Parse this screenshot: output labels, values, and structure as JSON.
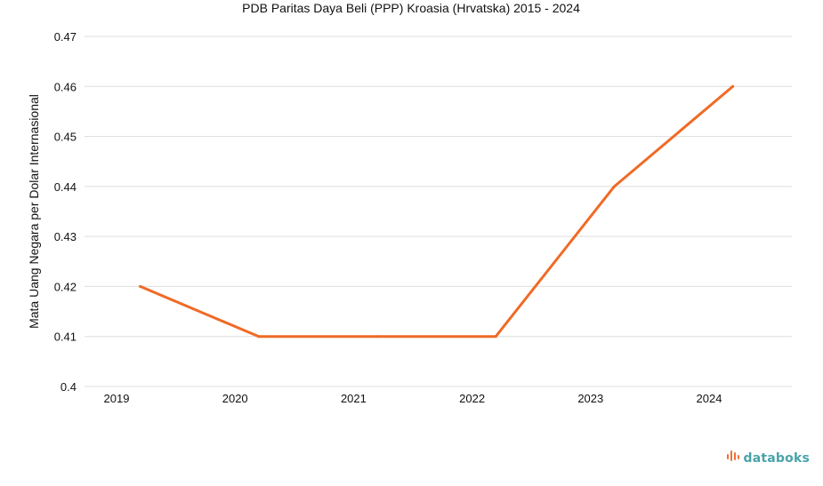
{
  "chart_data": {
    "type": "line",
    "title": "PDB Paritas Daya Beli (PPP) Kroasia (Hrvatska) 2015 - 2024",
    "xlabel": "",
    "ylabel": "Mata Uang Negara per Dolar Internasional",
    "categories": [
      "2019",
      "2020",
      "2021",
      "2022",
      "2023",
      "2024"
    ],
    "series": [
      {
        "values": [
          0.42,
          0.41,
          0.41,
          0.41,
          0.44,
          0.46
        ]
      }
    ],
    "ylim": [
      0.4,
      0.47
    ],
    "yticks": [
      "0.4",
      "0.41",
      "0.42",
      "0.43",
      "0.44",
      "0.45",
      "0.46",
      "0.47"
    ],
    "grid": true,
    "legend": "none"
  },
  "colors": {
    "series": "#f06a25",
    "brand_text": "#4aa3a8",
    "brand_icon": "#f0703a"
  },
  "brand": {
    "icon": "databoks-bars-icon",
    "name": "databoks"
  }
}
